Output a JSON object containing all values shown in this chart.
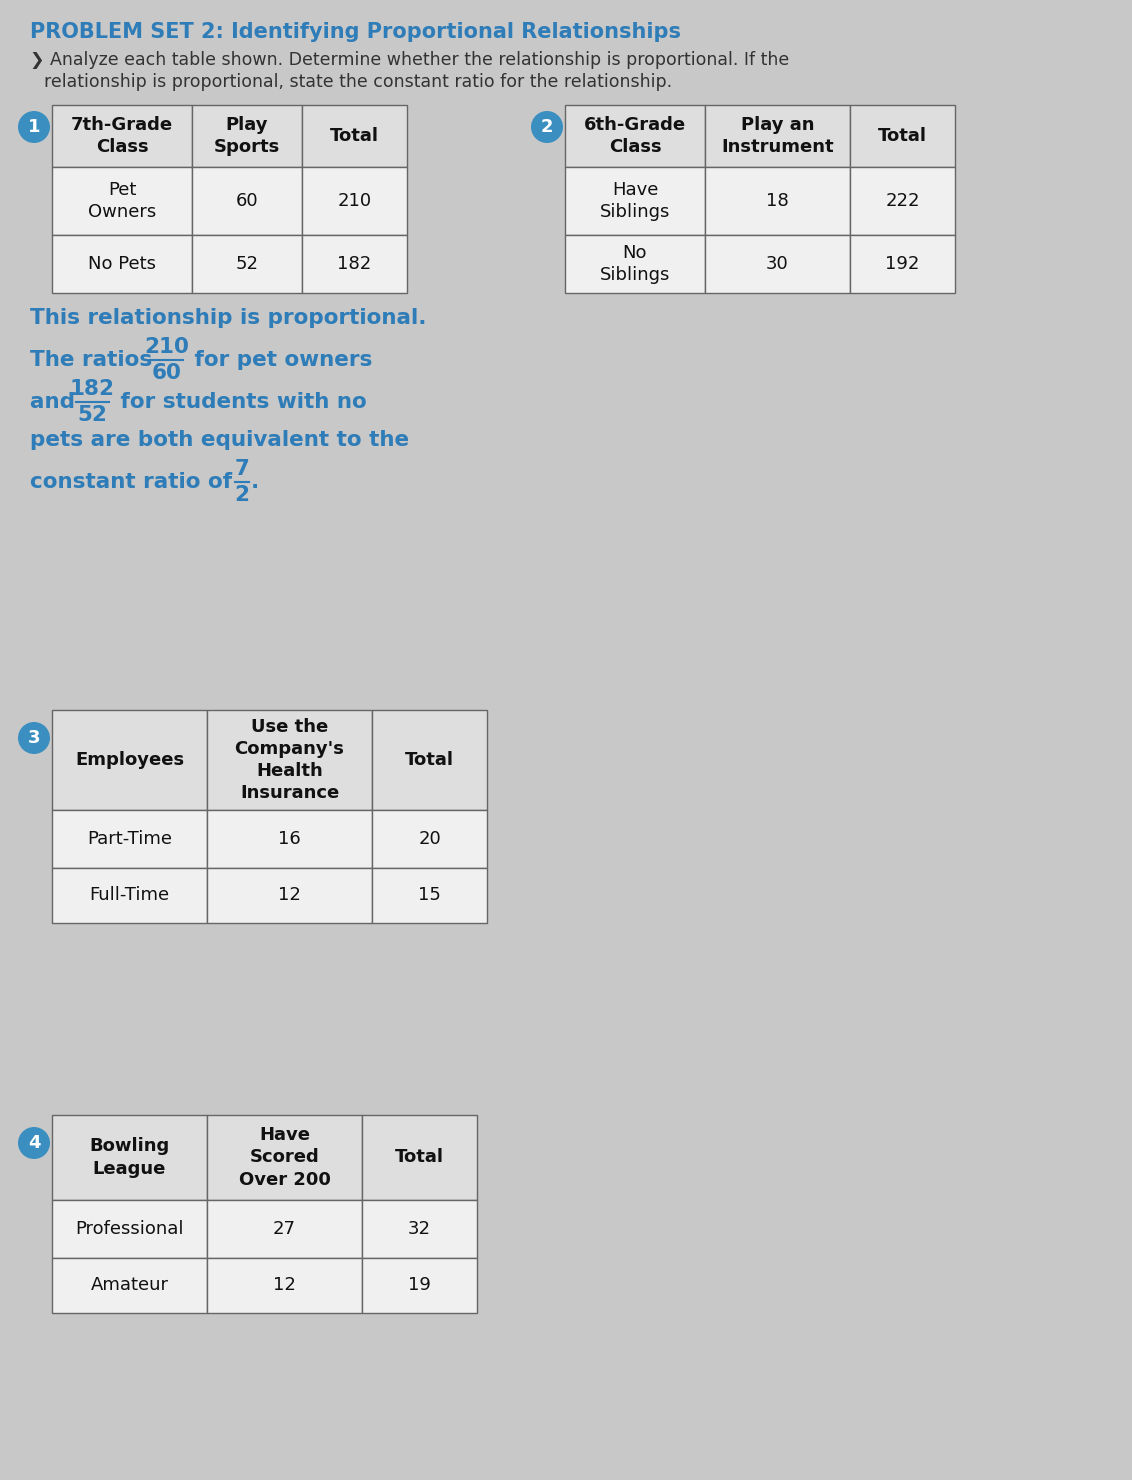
{
  "title": "PROBLEM SET 2: Identifying Proportional Relationships",
  "instruction_line1": "❯ Analyze each table shown. Determine whether the relationship is proportional. If the",
  "instruction_line2": "  relationship is proportional, state the constant ratio for the relationship.",
  "title_color": "#2E7CB8",
  "instruction_color": "#333333",
  "bg_color": "#C8C8C8",
  "header_bg": "#DEDEDE",
  "cell_bg": "#F0F0F0",
  "table_border_color": "#666666",
  "circle_color": "#3A8FC0",
  "answer_color": "#2E7CB8",
  "table1": {
    "number": "1",
    "headers": [
      "7th-Grade\nClass",
      "Play\nSports",
      "Total"
    ],
    "rows": [
      [
        "Pet\nOwners",
        "60",
        "210"
      ],
      [
        "No Pets",
        "52",
        "182"
      ]
    ]
  },
  "table2": {
    "number": "2",
    "headers": [
      "6th-Grade\nClass",
      "Play an\nInstrument",
      "Total"
    ],
    "rows": [
      [
        "Have\nSiblings",
        "18",
        "222"
      ],
      [
        "No\nSiblings",
        "30",
        "192"
      ]
    ]
  },
  "table3": {
    "number": "3",
    "headers": [
      "Employees",
      "Use the\nCompany's\nHealth\nInsurance",
      "Total"
    ],
    "rows": [
      [
        "Part-Time",
        "16",
        "20"
      ],
      [
        "Full-Time",
        "12",
        "15"
      ]
    ]
  },
  "table4": {
    "number": "4",
    "headers": [
      "Bowling\nLeague",
      "Have\nScored\nOver 200",
      "Total"
    ],
    "rows": [
      [
        "Professional",
        "27",
        "32"
      ],
      [
        "Amateur",
        "12",
        "19"
      ]
    ]
  }
}
